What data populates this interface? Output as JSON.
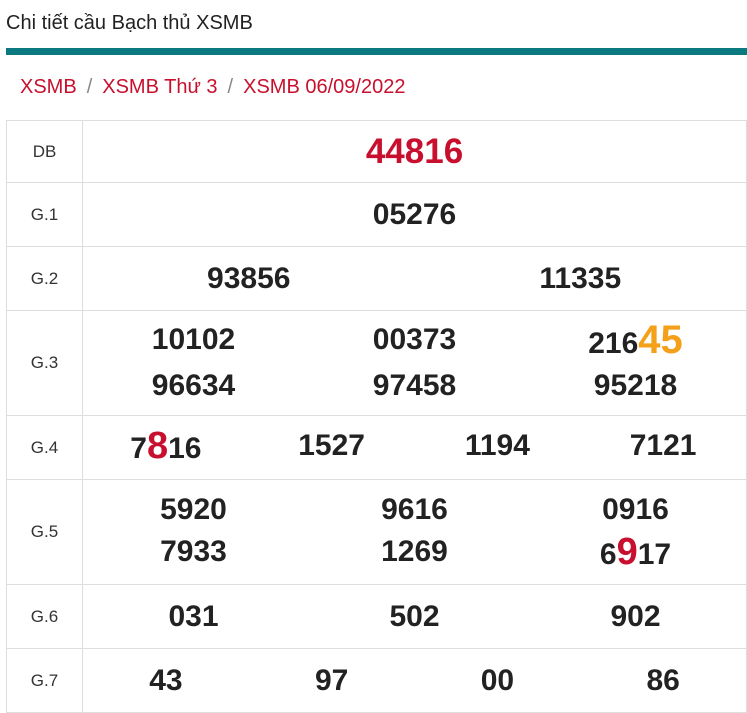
{
  "header": {
    "title": "Chi tiết cầu Bạch thủ XSMB"
  },
  "breadcrumb": [
    "XSMB",
    "XSMB Thứ 3",
    "XSMB 06/09/2022"
  ],
  "table": {
    "rows": [
      {
        "label": "DB",
        "numbers": [
          "44816"
        ]
      },
      {
        "label": "G.1",
        "numbers": [
          "05276"
        ]
      },
      {
        "label": "G.2",
        "numbers": [
          "93856",
          "11335"
        ]
      },
      {
        "label": "G.3",
        "numbers": [
          "10102",
          "00373",
          {
            "before": "216",
            "highlight": "45"
          },
          "96634",
          "97458",
          "95218"
        ]
      },
      {
        "label": "G.4",
        "numbers": [
          {
            "before": "7",
            "highlight": "8",
            "after": "16"
          },
          "1527",
          "1194",
          "7121"
        ]
      },
      {
        "label": "G.5",
        "numbers": [
          "5920",
          "9616",
          "0916",
          "7933",
          "1269",
          {
            "before": "6",
            "highlight": "9",
            "after": "17"
          }
        ]
      },
      {
        "label": "G.6",
        "numbers": [
          "031",
          "502",
          "902"
        ]
      },
      {
        "label": "G.7",
        "numbers": [
          "43",
          "97",
          "00",
          "86"
        ]
      }
    ]
  }
}
